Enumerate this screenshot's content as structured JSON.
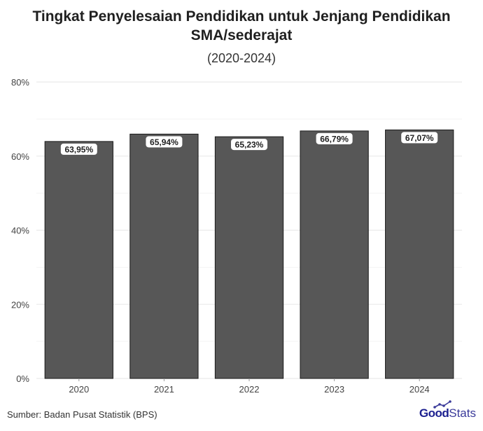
{
  "header": {
    "title_line1": "Tingkat Penyelesaian Pendidikan untuk Jenjang Pendidikan",
    "title_line2": "SMA/sederajat",
    "subtitle": "(2020-2024)"
  },
  "footer": {
    "source": "Sumber: Badan Pusat Statistik (BPS)",
    "brand_good": "Good",
    "brand_stats": "Stats"
  },
  "chart_data": {
    "type": "bar",
    "title": "Tingkat Penyelesaian Pendidikan untuk Jenjang Pendidikan SMA/sederajat",
    "subtitle": "(2020-2024)",
    "categories": [
      "2020",
      "2021",
      "2022",
      "2023",
      "2024"
    ],
    "values": [
      63.95,
      65.94,
      65.23,
      66.79,
      67.07
    ],
    "data_labels": [
      "63,95%",
      "65,94%",
      "65,23%",
      "66,79%",
      "67,07%"
    ],
    "ylim": [
      0,
      80
    ],
    "yticks": [
      0,
      20,
      40,
      60,
      80
    ],
    "ytick_labels": [
      "0%",
      "20%",
      "40%",
      "60%",
      "80%"
    ],
    "xlabel": "",
    "ylabel": "",
    "grid": true,
    "bar_color": "#575757",
    "bar_edge_color": "#1a1a1a",
    "grid_color": "#ebebeb"
  }
}
